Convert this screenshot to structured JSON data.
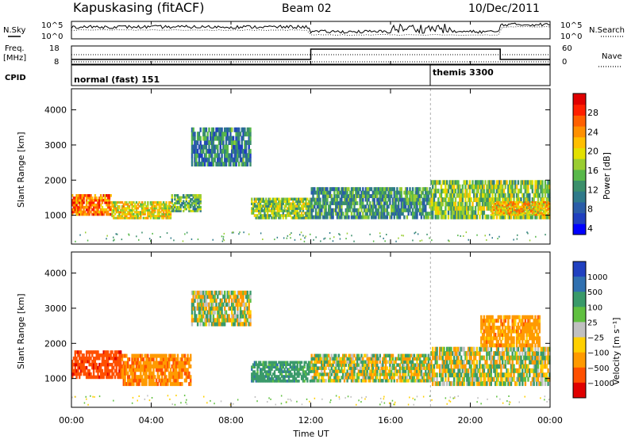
{
  "header": {
    "station": "Kapuskasing (fitACF)",
    "beam": "Beam 02",
    "date": "10/Dec/2011"
  },
  "summary_panel": {
    "left_labels": {
      "nsky": "N.Sky",
      "freq": "Freq.",
      "mhz": "[MHz]",
      "cpid": "CPID"
    },
    "right_labels": {
      "nsearch": "N.Search",
      "nave": "Nave"
    },
    "noise_ticks": [
      "10^5",
      "10^0"
    ],
    "freq_ticks": [
      "18",
      "8"
    ],
    "nave_ticks": [
      "60",
      "0"
    ],
    "cpid_modes": [
      {
        "label": "normal (fast) 151",
        "start_hour": 0,
        "end_hour": 18
      },
      {
        "label": "themis 3300",
        "start_hour": 18,
        "end_hour": 24
      }
    ]
  },
  "power_colorbar": {
    "label": "Power [dB]",
    "ticks": [
      "28",
      "24",
      "20",
      "16",
      "12",
      "8",
      "4"
    ],
    "colors": [
      "#0000ff",
      "#1f3fbf",
      "#2a5ca8",
      "#2f7a8a",
      "#3b8f6b",
      "#58b84a",
      "#9acd32",
      "#e3e000",
      "#ffbf00",
      "#ff9000",
      "#ff6000",
      "#ff2000",
      "#e00000"
    ]
  },
  "velocity_colorbar": {
    "label": "Velocity [m s⁻¹]",
    "ticks": [
      "1000",
      "500",
      "100",
      "25",
      "−25",
      "−100",
      "−500",
      "−1000"
    ],
    "colors": [
      "#2040c0",
      "#3070b0",
      "#3a9a6a",
      "#60c040",
      "#c0c0c0",
      "#ffd000",
      "#ff9a00",
      "#ff5000",
      "#e00000"
    ]
  },
  "range_axis": {
    "label": "Slant Range [km]",
    "ticks": [
      "4000",
      "3000",
      "2000",
      "1000"
    ]
  },
  "time_axis": {
    "label": "Time UT",
    "ticks": [
      "00:00",
      "04:00",
      "08:00",
      "12:00",
      "16:00",
      "20:00",
      "00:00"
    ]
  },
  "chart_data": [
    {
      "type": "heatmap",
      "title": "Power",
      "xlabel": "Time UT",
      "ylabel": "Slant Range [km]",
      "xlim": [
        0,
        24
      ],
      "ylim": [
        180,
        4600
      ],
      "colorbar_range_db": [
        0,
        30
      ],
      "regions": [
        {
          "t0": 0.0,
          "t1": 2.0,
          "r0": 1000,
          "r1": 1600,
          "value": 24
        },
        {
          "t0": 2.0,
          "t1": 5.0,
          "r0": 900,
          "r1": 1400,
          "value": 18
        },
        {
          "t0": 5.0,
          "t1": 6.5,
          "r0": 1100,
          "r1": 1600,
          "value": 12
        },
        {
          "t0": 6.0,
          "t1": 9.0,
          "r0": 2400,
          "r1": 3500,
          "value": 8
        },
        {
          "t0": 9.0,
          "t1": 12.0,
          "r0": 900,
          "r1": 1500,
          "value": 14
        },
        {
          "t0": 12.0,
          "t1": 18.0,
          "r0": 900,
          "r1": 1800,
          "value": 10
        },
        {
          "t0": 18.0,
          "t1": 24.0,
          "r0": 900,
          "r1": 2000,
          "value": 14
        },
        {
          "t0": 21.0,
          "t1": 24.0,
          "r0": 1000,
          "r1": 1400,
          "value": 20
        }
      ]
    },
    {
      "type": "heatmap",
      "title": "Velocity",
      "xlabel": "Time UT",
      "ylabel": "Slant Range [km]",
      "xlim": [
        0,
        24
      ],
      "ylim": [
        180,
        4600
      ],
      "colorbar_range_ms": [
        -1000,
        1000
      ],
      "regions": [
        {
          "t0": 0.0,
          "t1": 2.5,
          "r0": 1000,
          "r1": 1800,
          "value": -800
        },
        {
          "t0": 2.5,
          "t1": 6.0,
          "r0": 800,
          "r1": 1700,
          "value": -400
        },
        {
          "t0": 6.0,
          "t1": 9.0,
          "r0": 2500,
          "r1": 3500,
          "value": 0
        },
        {
          "t0": 9.0,
          "t1": 12.0,
          "r0": 900,
          "r1": 1500,
          "value": 300
        },
        {
          "t0": 12.0,
          "t1": 18.0,
          "r0": 900,
          "r1": 1700,
          "value": 0
        },
        {
          "t0": 18.0,
          "t1": 24.0,
          "r0": 800,
          "r1": 1900,
          "value": 0
        },
        {
          "t0": 20.5,
          "t1": 23.5,
          "r0": 1900,
          "r1": 2800,
          "value": -300
        }
      ]
    }
  ]
}
